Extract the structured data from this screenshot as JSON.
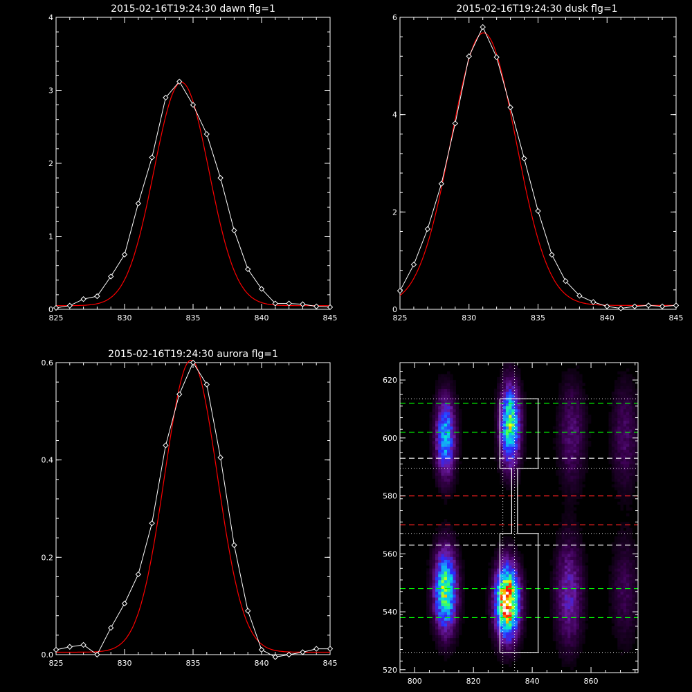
{
  "colors": {
    "background": "#000000",
    "data_line": "#ffffff",
    "fit_line": "#ff0000",
    "green_dash": "#00ff00",
    "red_dash": "#ff2020",
    "white_dash": "#ffffff"
  },
  "chart_data": [
    {
      "type": "line",
      "title": "2015-02-16T19:24:30 dawn flg=1",
      "xlim": [
        825,
        845
      ],
      "ylim": [
        0,
        4
      ],
      "xticks": [
        825,
        830,
        835,
        840,
        845
      ],
      "yticks": [
        0,
        1,
        2,
        3,
        4
      ],
      "series": [
        {
          "role": "data",
          "marker": "diamond",
          "color": "#ffffff",
          "x": [
            825,
            826,
            827,
            828,
            829,
            830,
            831,
            832,
            833,
            834,
            835,
            836,
            837,
            838,
            839,
            840,
            841,
            842,
            843,
            844,
            845
          ],
          "y": [
            0.02,
            0.05,
            0.14,
            0.18,
            0.45,
            0.75,
            1.45,
            2.08,
            2.9,
            3.12,
            2.8,
            2.4,
            1.8,
            1.08,
            0.55,
            0.28,
            0.08,
            0.08,
            0.07,
            0.04,
            0.03
          ]
        },
        {
          "role": "fit",
          "marker": "none",
          "color": "#ff0000",
          "gauss": {
            "amp": 3.06,
            "center": 834.15,
            "sigma": 2.0,
            "base": 0.05
          }
        }
      ]
    },
    {
      "type": "line",
      "title": "2015-02-16T19:24:30 dusk flg=1",
      "xlim": [
        825,
        845
      ],
      "ylim": [
        0,
        6
      ],
      "xticks": [
        825,
        830,
        835,
        840,
        845
      ],
      "yticks": [
        0,
        2,
        4,
        6
      ],
      "series": [
        {
          "role": "data",
          "marker": "diamond",
          "color": "#ffffff",
          "x": [
            825,
            826,
            827,
            828,
            829,
            830,
            831,
            832,
            833,
            834,
            835,
            836,
            837,
            838,
            839,
            840,
            841,
            842,
            843,
            844,
            845
          ],
          "y": [
            0.38,
            0.92,
            1.65,
            2.58,
            3.82,
            5.2,
            5.8,
            5.18,
            4.15,
            3.1,
            2.02,
            1.12,
            0.58,
            0.28,
            0.15,
            0.06,
            0.02,
            0.06,
            0.08,
            0.06,
            0.08
          ]
        },
        {
          "role": "fit",
          "marker": "none",
          "color": "#ff0000",
          "gauss": {
            "amp": 5.6,
            "center": 831.05,
            "sigma": 2.35,
            "base": 0.08
          }
        }
      ]
    },
    {
      "type": "line",
      "title": "2015-02-16T19:24:30 aurora flg=1",
      "xlim": [
        825,
        845
      ],
      "ylim": [
        0,
        0.6
      ],
      "xticks": [
        825,
        830,
        835,
        840,
        845
      ],
      "yticks": [
        0.0,
        0.2,
        0.4,
        0.6
      ],
      "series": [
        {
          "role": "data",
          "marker": "diamond",
          "color": "#ffffff",
          "x": [
            825,
            826,
            827,
            828,
            829,
            830,
            831,
            832,
            833,
            834,
            835,
            836,
            837,
            838,
            839,
            840,
            841,
            842,
            843,
            844,
            845
          ],
          "y": [
            0.01,
            0.016,
            0.02,
            0.0,
            0.055,
            0.105,
            0.165,
            0.27,
            0.43,
            0.535,
            0.6,
            0.555,
            0.405,
            0.225,
            0.09,
            0.01,
            -0.005,
            0.0,
            0.005,
            0.012,
            0.012
          ]
        },
        {
          "role": "fit",
          "marker": "none",
          "color": "#ff0000",
          "gauss": {
            "amp": 0.6,
            "center": 834.85,
            "sigma": 1.92,
            "base": 0.005
          }
        }
      ]
    },
    {
      "type": "heatmap",
      "xlim": [
        795,
        876
      ],
      "ylim": [
        519,
        626
      ],
      "xticks": [
        800,
        820,
        840,
        860
      ],
      "yticks": [
        520,
        540,
        560,
        580,
        600,
        620
      ],
      "colormap": [
        "#000000",
        "#3a0050",
        "#6a1aa0",
        "#2a2aff",
        "#1e90ff",
        "#00e0e0",
        "#40ff60",
        "#ffff00",
        "#ff4000",
        "#ff0000",
        "#ffffff"
      ],
      "blobs": [
        {
          "x": 810,
          "y": 547,
          "sx": 2.5,
          "sy": 9,
          "amp": 0.62
        },
        {
          "x": 810,
          "y": 600,
          "sx": 2.2,
          "sy": 9,
          "amp": 0.44
        },
        {
          "x": 831,
          "y": 543,
          "sx": 2.6,
          "sy": 8,
          "amp": 0.95
        },
        {
          "x": 832,
          "y": 604,
          "sx": 2.2,
          "sy": 9,
          "amp": 0.6
        },
        {
          "x": 852,
          "y": 546,
          "sx": 3,
          "sy": 12,
          "amp": 0.22
        },
        {
          "x": 853,
          "y": 601,
          "sx": 3,
          "sy": 12,
          "amp": 0.14
        },
        {
          "x": 871,
          "y": 600,
          "sx": 3,
          "sy": 12,
          "amp": 0.12
        },
        {
          "x": 871,
          "y": 547,
          "sx": 3,
          "sy": 12,
          "amp": 0.1
        }
      ],
      "overlays": {
        "green_dashed_y": [
          612,
          602,
          548,
          538
        ],
        "red_dashed_y": [
          580,
          570
        ],
        "white_dashed_y": [
          593,
          563
        ],
        "white_dotted_y": [
          613.5,
          589.5,
          567,
          526
        ],
        "white_dotted_x": [
          830,
          834
        ],
        "white_outline": [
          [
            829,
            613.5
          ],
          [
            842,
            613.5
          ],
          [
            842,
            589.5
          ],
          [
            835,
            589.5
          ],
          [
            835,
            567
          ],
          [
            842,
            567
          ],
          [
            842,
            526
          ],
          [
            829,
            526
          ],
          [
            829,
            567
          ],
          [
            833,
            567
          ],
          [
            833,
            589.5
          ],
          [
            829,
            589.5
          ],
          [
            829,
            613.5
          ]
        ]
      }
    }
  ]
}
